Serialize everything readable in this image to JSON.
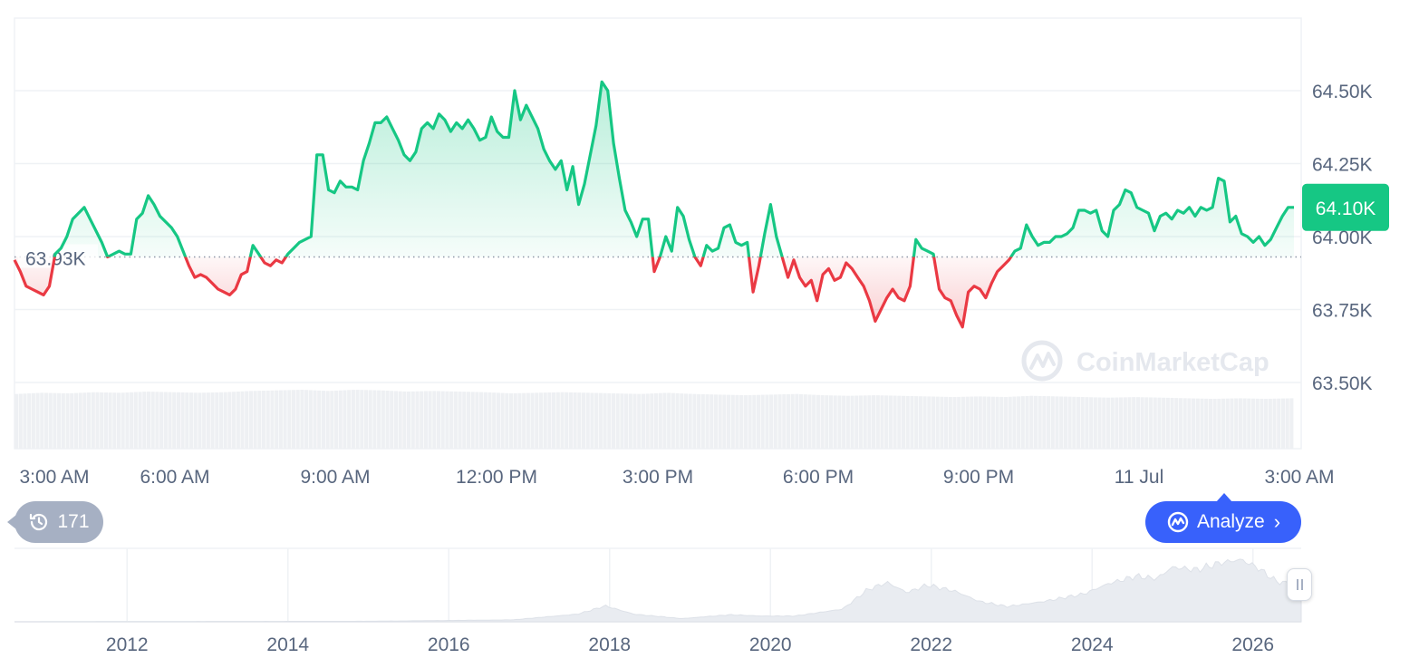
{
  "chart_data": {
    "type": "area",
    "title": "",
    "xlabel": "",
    "ylabel": "",
    "x_tick_labels": [
      "3:00 AM",
      "6:00 AM",
      "9:00 AM",
      "12:00 PM",
      "3:00 PM",
      "6:00 PM",
      "9:00 PM",
      "11 Jul",
      "3:00 AM"
    ],
    "y_tick_labels": [
      "64.50K",
      "64.25K",
      "64.00K",
      "63.75K",
      "63.50K"
    ],
    "y_ticks": [
      64500,
      64250,
      64000,
      63750,
      63500
    ],
    "ylim": [
      63500,
      64750
    ],
    "baseline": 63930,
    "baseline_label": "63.93K",
    "current_price": 64100,
    "current_price_label": "64.10K",
    "watermark": "CoinMarketCap",
    "price_series": [
      63920,
      63880,
      63830,
      63820,
      63810,
      63800,
      63830,
      63940,
      63960,
      64000,
      64060,
      64080,
      64100,
      64060,
      64020,
      63980,
      63930,
      63940,
      63950,
      63940,
      63940,
      64060,
      64080,
      64140,
      64110,
      64070,
      64050,
      64030,
      64000,
      63950,
      63900,
      63860,
      63870,
      63860,
      63840,
      63820,
      63810,
      63800,
      63820,
      63870,
      63880,
      63970,
      63940,
      63910,
      63900,
      63920,
      63910,
      63940,
      63960,
      63980,
      63990,
      64000,
      64280,
      64280,
      64160,
      64150,
      64190,
      64170,
      64170,
      64160,
      64260,
      64320,
      64390,
      64390,
      64410,
      64370,
      64330,
      64280,
      64260,
      64290,
      64370,
      64390,
      64370,
      64420,
      64400,
      64360,
      64390,
      64370,
      64400,
      64370,
      64330,
      64340,
      64410,
      64360,
      64340,
      64340,
      64500,
      64400,
      64450,
      64410,
      64370,
      64300,
      64260,
      64230,
      64260,
      64160,
      64240,
      64110,
      64180,
      64280,
      64380,
      64530,
      64500,
      64320,
      64200,
      64090,
      64050,
      64000,
      64060,
      64060,
      63880,
      63930,
      64000,
      63950,
      64100,
      64070,
      63990,
      63930,
      63900,
      63970,
      63950,
      63960,
      64030,
      64040,
      63980,
      63970,
      63980,
      63810,
      63900,
      64010,
      64110,
      64000,
      63930,
      63860,
      63920,
      63860,
      63830,
      63850,
      63780,
      63870,
      63890,
      63850,
      63860,
      63910,
      63890,
      63860,
      63830,
      63780,
      63710,
      63750,
      63790,
      63820,
      63790,
      63780,
      63830,
      63990,
      63960,
      63950,
      63940,
      63820,
      63790,
      63780,
      63730,
      63690,
      63810,
      63830,
      63820,
      63790,
      63840,
      63880,
      63900,
      63920,
      63950,
      63960,
      64040,
      64000,
      63970,
      63980,
      63980,
      64000,
      64000,
      64010,
      64030,
      64090,
      64090,
      64080,
      64090,
      64020,
      64000,
      64090,
      64110,
      64160,
      64150,
      64100,
      64090,
      64080,
      64020,
      64070,
      64080,
      64060,
      64090,
      64080,
      64100,
      64070,
      64100,
      64090,
      64100,
      64200,
      64190,
      64050,
      64070,
      64010,
      64000,
      63980,
      64000,
      63970,
      63990,
      64030,
      64070,
      64100,
      64100
    ],
    "volume_series": [
      0.9,
      0.92,
      0.91,
      0.93,
      0.92,
      0.94,
      0.93,
      0.92,
      0.93,
      0.95,
      0.96,
      0.97,
      0.95,
      0.97,
      0.96,
      0.94,
      0.95,
      0.94,
      0.93,
      0.91,
      0.92,
      0.93,
      0.92,
      0.91,
      0.9,
      0.92,
      0.9,
      0.89,
      0.88,
      0.89,
      0.9,
      0.88,
      0.87,
      0.88,
      0.87,
      0.86,
      0.85,
      0.86,
      0.85,
      0.87,
      0.86,
      0.85,
      0.84,
      0.85,
      0.84,
      0.83,
      0.82,
      0.83,
      0.82,
      0.83
    ],
    "overview": {
      "type": "area",
      "x_tick_labels": [
        "2012",
        "2014",
        "2016",
        "2018",
        "2020",
        "2022",
        "2024",
        "2026"
      ],
      "x_range": [
        2010.6,
        2026.6
      ],
      "points": [
        [
          2010.6,
          0
        ],
        [
          2013.0,
          0.005
        ],
        [
          2015.0,
          0.008
        ],
        [
          2016.8,
          0.03
        ],
        [
          2017.6,
          0.12
        ],
        [
          2017.95,
          0.25
        ],
        [
          2018.3,
          0.12
        ],
        [
          2018.9,
          0.05
        ],
        [
          2019.5,
          0.11
        ],
        [
          2019.9,
          0.09
        ],
        [
          2020.3,
          0.09
        ],
        [
          2020.9,
          0.2
        ],
        [
          2021.2,
          0.5
        ],
        [
          2021.45,
          0.62
        ],
        [
          2021.7,
          0.46
        ],
        [
          2021.95,
          0.58
        ],
        [
          2022.3,
          0.48
        ],
        [
          2022.6,
          0.32
        ],
        [
          2022.95,
          0.24
        ],
        [
          2023.4,
          0.32
        ],
        [
          2023.9,
          0.44
        ],
        [
          2024.2,
          0.6
        ],
        [
          2024.55,
          0.72
        ],
        [
          2024.8,
          0.68
        ],
        [
          2025.0,
          0.86
        ],
        [
          2025.3,
          0.82
        ],
        [
          2025.6,
          0.93
        ],
        [
          2025.85,
          0.98
        ],
        [
          2026.05,
          0.86
        ],
        [
          2026.3,
          0.63
        ],
        [
          2026.6,
          0.58
        ]
      ]
    },
    "grid": true,
    "colors": {
      "up_line": "#16c784",
      "down_line": "#ea3943",
      "up_fill": "#16c784",
      "down_fill": "#ea3943",
      "volume": "#eef0f3",
      "overview": "#e9ecf1",
      "axis_text": "#58667e",
      "grid": "#eff2f5"
    }
  },
  "controls": {
    "history_count": "171",
    "analyze_label": "Analyze"
  }
}
